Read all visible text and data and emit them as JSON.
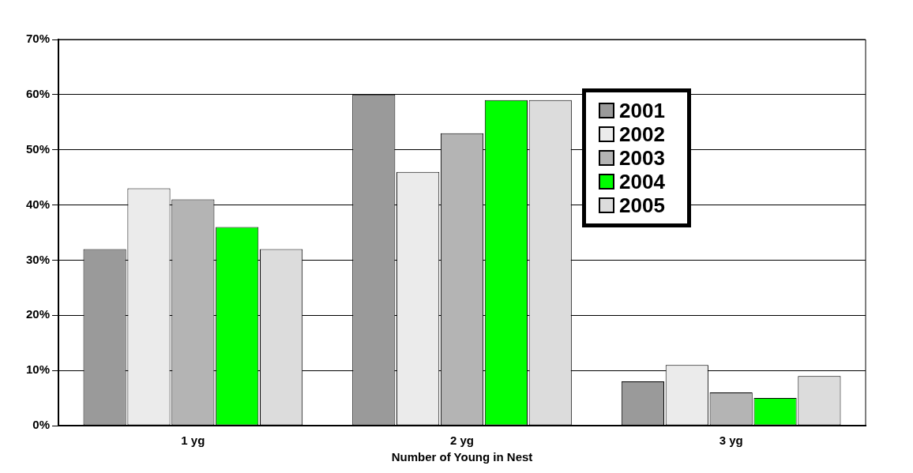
{
  "chart_data": {
    "type": "bar",
    "xlabel": "Number of Young in Nest",
    "categories": [
      "1 yg",
      "2 yg",
      "3 yg"
    ],
    "series": [
      {
        "name": "2001",
        "color": "#9a9a9a",
        "values": [
          32,
          60,
          8
        ]
      },
      {
        "name": "2002",
        "color": "#ebebeb",
        "values": [
          43,
          46,
          11
        ]
      },
      {
        "name": "2003",
        "color": "#b4b4b4",
        "values": [
          41,
          53,
          6
        ]
      },
      {
        "name": "2004",
        "color": "#00ff00",
        "values": [
          36,
          59,
          5
        ]
      },
      {
        "name": "2005",
        "color": "#dcdcdc",
        "values": [
          32,
          59,
          9
        ]
      }
    ],
    "ylim": [
      0,
      70
    ],
    "yticks": [
      {
        "value": 0,
        "label": "0%"
      },
      {
        "value": 10,
        "label": "10%"
      },
      {
        "value": 20,
        "label": "20%"
      },
      {
        "value": 30,
        "label": "30%"
      },
      {
        "value": 40,
        "label": "40%"
      },
      {
        "value": 50,
        "label": "50%"
      },
      {
        "value": 60,
        "label": "60%"
      },
      {
        "value": 70,
        "label": "70%"
      }
    ],
    "grid": "y",
    "legend": "top right"
  }
}
